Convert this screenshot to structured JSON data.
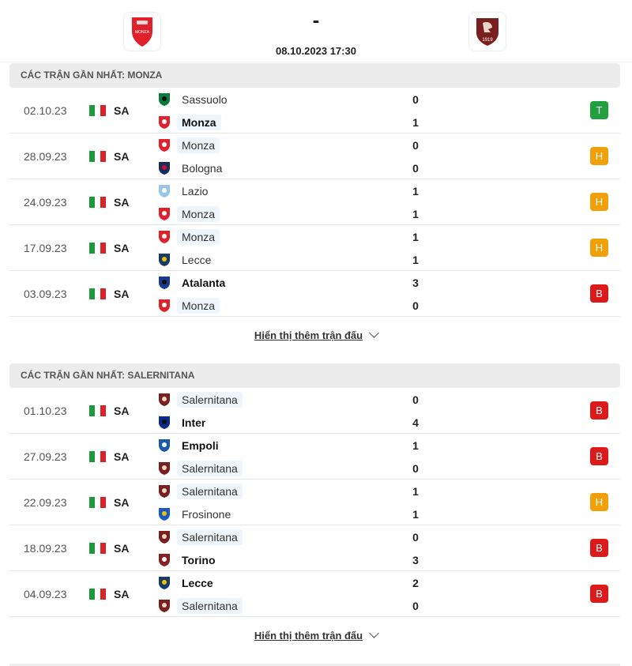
{
  "header": {
    "score": "-",
    "datetime": "08.10.2023 17:30",
    "home_logo": "monza-logo",
    "away_logo": "salernitana-logo"
  },
  "colors": {
    "win": "#22a040",
    "draw": "#f0a00a",
    "loss": "#dd1a1a"
  },
  "sections": [
    {
      "title": "CÁC TRẬN GẦN NHẤT: MONZA",
      "show_more": "Hiển thị thêm trận đấu",
      "matches": [
        {
          "date": "02.10.23",
          "league": "SA",
          "result": "T",
          "result_type": "win",
          "teams": [
            {
              "name": "Sassuolo",
              "score": "0",
              "icon": "sassuolo"
            },
            {
              "name": "Monza",
              "score": "1",
              "icon": "monza",
              "bold": true,
              "highlight": true
            }
          ]
        },
        {
          "date": "28.09.23",
          "league": "SA",
          "result": "H",
          "result_type": "draw",
          "teams": [
            {
              "name": "Monza",
              "score": "0",
              "icon": "monza",
              "highlight": true
            },
            {
              "name": "Bologna",
              "score": "0",
              "icon": "bologna"
            }
          ]
        },
        {
          "date": "24.09.23",
          "league": "SA",
          "result": "H",
          "result_type": "draw",
          "teams": [
            {
              "name": "Lazio",
              "score": "1",
              "icon": "lazio"
            },
            {
              "name": "Monza",
              "score": "1",
              "icon": "monza",
              "highlight": true
            }
          ]
        },
        {
          "date": "17.09.23",
          "league": "SA",
          "result": "H",
          "result_type": "draw",
          "teams": [
            {
              "name": "Monza",
              "score": "1",
              "icon": "monza",
              "highlight": true
            },
            {
              "name": "Lecce",
              "score": "1",
              "icon": "lecce"
            }
          ]
        },
        {
          "date": "03.09.23",
          "league": "SA",
          "result": "B",
          "result_type": "loss",
          "teams": [
            {
              "name": "Atalanta",
              "score": "3",
              "icon": "atalanta",
              "bold": true
            },
            {
              "name": "Monza",
              "score": "0",
              "icon": "monza",
              "highlight": true
            }
          ]
        }
      ]
    },
    {
      "title": "CÁC TRẬN GẦN NHẤT: SALERNITANA",
      "show_more": "Hiển thị thêm trận đấu",
      "matches": [
        {
          "date": "01.10.23",
          "league": "SA",
          "result": "B",
          "result_type": "loss",
          "teams": [
            {
              "name": "Salernitana",
              "score": "0",
              "icon": "salernitana",
              "highlight": true
            },
            {
              "name": "Inter",
              "score": "4",
              "icon": "inter",
              "bold": true
            }
          ]
        },
        {
          "date": "27.09.23",
          "league": "SA",
          "result": "B",
          "result_type": "loss",
          "teams": [
            {
              "name": "Empoli",
              "score": "1",
              "icon": "empoli",
              "bold": true
            },
            {
              "name": "Salernitana",
              "score": "0",
              "icon": "salernitana",
              "highlight": true
            }
          ]
        },
        {
          "date": "22.09.23",
          "league": "SA",
          "result": "H",
          "result_type": "draw",
          "teams": [
            {
              "name": "Salernitana",
              "score": "1",
              "icon": "salernitana",
              "highlight": true
            },
            {
              "name": "Frosinone",
              "score": "1",
              "icon": "frosinone"
            }
          ]
        },
        {
          "date": "18.09.23",
          "league": "SA",
          "result": "B",
          "result_type": "loss",
          "teams": [
            {
              "name": "Salernitana",
              "score": "0",
              "icon": "salernitana",
              "highlight": true
            },
            {
              "name": "Torino",
              "score": "3",
              "icon": "torino",
              "bold": true
            }
          ]
        },
        {
          "date": "04.09.23",
          "league": "SA",
          "result": "B",
          "result_type": "loss",
          "teams": [
            {
              "name": "Lecce",
              "score": "2",
              "icon": "lecce",
              "bold": true
            },
            {
              "name": "Salernitana",
              "score": "0",
              "icon": "salernitana",
              "highlight": true
            }
          ]
        }
      ]
    }
  ]
}
